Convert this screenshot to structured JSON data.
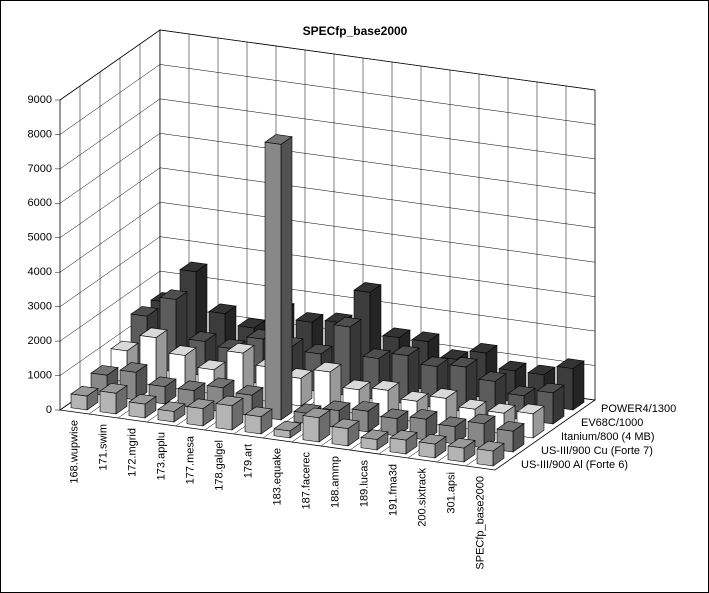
{
  "chart_data": {
    "type": "bar3d",
    "title": "SPECfp_base2000",
    "categories": [
      "168.wupwise",
      "171.swim",
      "172.mgrid",
      "173.applu",
      "177.mesa",
      "178.galgel",
      "179.art",
      "183.equake",
      "187.facerec",
      "188.ammp",
      "189.lucas",
      "191.fma3d",
      "200.sixtrack",
      "301.apsi",
      "SPECfp_base2000"
    ],
    "series": [
      {
        "name": "POWER4/1300",
        "color": "#3c3c3c",
        "values": [
          1500,
          2500,
          1400,
          1100,
          1700,
          1500,
          1600,
          2600,
          1400,
          1400,
          1000,
          1300,
          900,
          900,
          1200
        ]
      },
      {
        "name": "EV68C/1000",
        "color": "#5c5c5c",
        "values": [
          1500,
          2100,
          1000,
          900,
          1300,
          1200,
          1100,
          2000,
          1200,
          1400,
          1200,
          1300,
          1000,
          700,
          900
        ]
      },
      {
        "name": "Itanium/800 (4 MB)",
        "color": "#ffffff",
        "values": [
          900,
          1400,
          1000,
          700,
          1300,
          1000,
          800,
          1100,
          700,
          800,
          600,
          800,
          600,
          600,
          700
        ]
      },
      {
        "name": "US-III/900 Cu (Forte 7)",
        "color": "#888888",
        "values": [
          600,
          800,
          500,
          500,
          700,
          600,
          8000,
          300,
          500,
          600,
          500,
          600,
          500,
          700,
          600
        ]
      },
      {
        "name": "US-III/900 Al (Forte 6)",
        "color": "#b4b4b4",
        "values": [
          400,
          600,
          400,
          300,
          500,
          700,
          500,
          200,
          700,
          500,
          300,
          400,
          400,
          400,
          430
        ]
      }
    ],
    "ylim": [
      0,
      9000
    ],
    "yticks": [
      0,
      1000,
      2000,
      3000,
      4000,
      5000,
      6000,
      7000,
      8000,
      9000
    ],
    "grid": true
  }
}
